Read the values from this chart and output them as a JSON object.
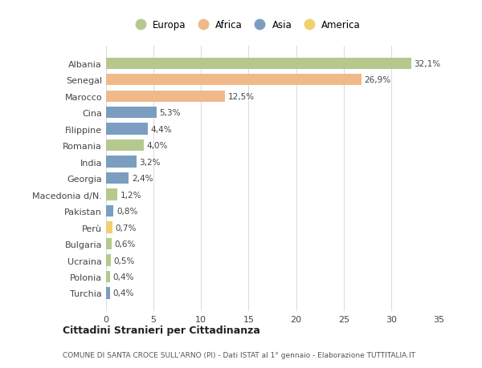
{
  "countries": [
    "Albania",
    "Senegal",
    "Marocco",
    "Cina",
    "Filippine",
    "Romania",
    "India",
    "Georgia",
    "Macedonia d/N.",
    "Pakistan",
    "Perù",
    "Bulgaria",
    "Ucraina",
    "Polonia",
    "Turchia"
  ],
  "values": [
    32.1,
    26.9,
    12.5,
    5.3,
    4.4,
    4.0,
    3.2,
    2.4,
    1.2,
    0.8,
    0.7,
    0.6,
    0.5,
    0.4,
    0.4
  ],
  "labels": [
    "32,1%",
    "26,9%",
    "12,5%",
    "5,3%",
    "4,4%",
    "4,0%",
    "3,2%",
    "2,4%",
    "1,2%",
    "0,8%",
    "0,7%",
    "0,6%",
    "0,5%",
    "0,4%",
    "0,4%"
  ],
  "continents": [
    "Europa",
    "Africa",
    "Africa",
    "Asia",
    "Asia",
    "Europa",
    "Asia",
    "Asia",
    "Europa",
    "Asia",
    "America",
    "Europa",
    "Europa",
    "Europa",
    "Asia"
  ],
  "continent_colors": {
    "Europa": "#b5c98e",
    "Africa": "#f0b989",
    "Asia": "#7b9ec0",
    "America": "#f0d070"
  },
  "legend_order": [
    "Europa",
    "Africa",
    "Asia",
    "America"
  ],
  "title": "Cittadini Stranieri per Cittadinanza",
  "subtitle": "COMUNE DI SANTA CROCE SULL'ARNO (PI) - Dati ISTAT al 1° gennaio - Elaborazione TUTTITALIA.IT",
  "xlim": [
    0,
    35
  ],
  "xticks": [
    0,
    5,
    10,
    15,
    20,
    25,
    30,
    35
  ],
  "bg_color": "#ffffff",
  "grid_color": "#dddddd",
  "bar_height": 0.7
}
